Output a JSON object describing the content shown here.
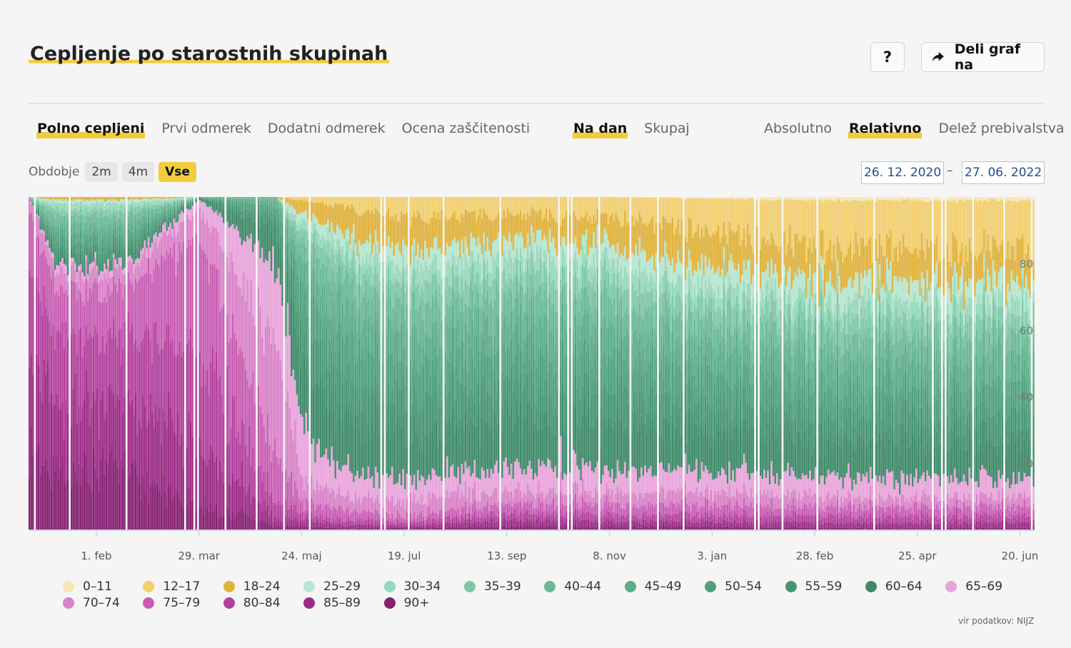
{
  "title": "Cepljenje po starostnih skupinah",
  "buttons": {
    "help": "?",
    "share": "Deli graf na"
  },
  "tabs": {
    "measure": [
      "Polno cepljeni",
      "Prvi odmerek",
      "Dodatni odmerek",
      "Ocena zaščitenosti"
    ],
    "measure_active": 0,
    "frequency": [
      "Na dan",
      "Skupaj"
    ],
    "frequency_active": 0,
    "scale": [
      "Absolutno",
      "Relativno",
      "Delež prebivalstva"
    ],
    "scale_active": 1
  },
  "period": {
    "label": "Obdobje",
    "options": [
      "2m",
      "4m",
      "Vse"
    ],
    "active": 2
  },
  "date_range": {
    "from": "26. 12. 2020",
    "separator": "–",
    "to": "27. 06. 2022"
  },
  "source": "vir podatkov: NIJZ",
  "colors": {
    "accent": "#f2cb3f",
    "groups": [
      "#f8e6b5",
      "#f2cf6e",
      "#e0b23c",
      "#b5e6d0",
      "#96d8bc",
      "#7dc7a7",
      "#69b895",
      "#5bac89",
      "#4fa07d",
      "#459573",
      "#3d8a69",
      "#e8a4da",
      "#d982c8",
      "#c85cb3",
      "#b3409e",
      "#9c2a86",
      "#861f72"
    ]
  },
  "chart_data": {
    "type": "stacked-bar",
    "x_range": [
      "2020-12-26",
      "2022-06-27"
    ],
    "x_ticks": [
      "1. feb",
      "29. mar",
      "24. maj",
      "19. jul",
      "13. sep",
      "8. nov",
      "3. jan",
      "28. feb",
      "25. apr",
      "20. jun"
    ],
    "x_tick_dates": [
      "2021-02-01",
      "2021-03-29",
      "2021-05-24",
      "2021-07-19",
      "2021-09-13",
      "2021-11-08",
      "2022-01-03",
      "2022-02-28",
      "2022-04-25",
      "2022-06-20"
    ],
    "y_ticks": [
      20,
      40,
      60,
      80
    ],
    "ylim": [
      0,
      100
    ],
    "unit": "%",
    "series": [
      "0–11",
      "12–17",
      "18–24",
      "25–29",
      "30–34",
      "35–39",
      "40–44",
      "45–49",
      "50–54",
      "55–59",
      "60–64",
      "65–69",
      "70–74",
      "75–79",
      "80–84",
      "85–89",
      "90+"
    ],
    "share_profile_percent": {
      "dates": [
        "2020-12-26",
        "2021-01-10",
        "2021-02-15",
        "2021-03-29",
        "2021-05-10",
        "2021-05-24",
        "2021-06-15",
        "2021-07-19",
        "2021-09-13",
        "2021-11-08",
        "2022-01-03",
        "2022-02-28",
        "2022-04-25",
        "2022-06-27"
      ],
      "groups": [
        {
          "group": "0–11",
          "values": [
            0,
            0,
            0,
            0,
            0,
            0,
            0,
            0,
            0,
            0,
            0.5,
            1,
            1,
            1
          ]
        },
        {
          "group": "12–17",
          "values": [
            0,
            0,
            0,
            0,
            0,
            1,
            3,
            6,
            5,
            6,
            10,
            14,
            14,
            15
          ]
        },
        {
          "group": "18–24",
          "values": [
            0,
            1,
            1,
            0,
            0,
            4,
            8,
            10,
            8,
            8,
            10,
            10,
            10,
            10
          ]
        },
        {
          "group": "25–29",
          "values": [
            0,
            1,
            1,
            0,
            0,
            3,
            4,
            5,
            5,
            5,
            6,
            6,
            6,
            6
          ]
        },
        {
          "group": "30–34",
          "values": [
            0,
            2,
            2,
            0,
            0,
            3,
            4,
            5,
            5,
            5,
            5,
            5,
            5,
            5
          ]
        },
        {
          "group": "35–39",
          "values": [
            0,
            2,
            2,
            0,
            0,
            4,
            5,
            6,
            6,
            6,
            6,
            6,
            6,
            6
          ]
        },
        {
          "group": "40–44",
          "values": [
            0,
            3,
            3,
            0,
            1,
            6,
            8,
            8,
            8,
            8,
            7,
            7,
            7,
            7
          ]
        },
        {
          "group": "45–49",
          "values": [
            0,
            3,
            3,
            0,
            2,
            8,
            10,
            9,
            9,
            9,
            8,
            8,
            8,
            8
          ]
        },
        {
          "group": "50–54",
          "values": [
            0,
            3,
            3,
            0,
            3,
            10,
            12,
            10,
            10,
            10,
            9,
            8,
            8,
            8
          ]
        },
        {
          "group": "55–59",
          "values": [
            0,
            3,
            3,
            0,
            4,
            12,
            12,
            10,
            10,
            10,
            8,
            8,
            8,
            8
          ]
        },
        {
          "group": "60–64",
          "values": [
            0,
            3,
            3,
            1,
            10,
            20,
            16,
            13,
            14,
            14,
            12,
            11,
            11,
            11
          ]
        },
        {
          "group": "65–69",
          "values": [
            0,
            2,
            2,
            3,
            25,
            14,
            8,
            6,
            7,
            7,
            6,
            6,
            6,
            5
          ]
        },
        {
          "group": "70–74",
          "values": [
            5,
            5,
            5,
            10,
            35,
            7,
            4,
            4,
            4,
            4,
            4,
            3,
            3,
            3
          ]
        },
        {
          "group": "75–79",
          "values": [
            15,
            12,
            12,
            30,
            12,
            3,
            3,
            2,
            3,
            3,
            3,
            3,
            3,
            3
          ]
        },
        {
          "group": "80–84",
          "values": [
            25,
            20,
            20,
            30,
            5,
            2,
            1.5,
            1,
            2,
            2,
            2,
            2,
            2,
            2
          ]
        },
        {
          "group": "85–89",
          "values": [
            30,
            22,
            22,
            18,
            2,
            2,
            1,
            0.5,
            2,
            1.5,
            1.5,
            1.5,
            1.5,
            1.5
          ]
        },
        {
          "group": "90+",
          "values": [
            25,
            18,
            18,
            8,
            1,
            1,
            0.5,
            0.5,
            1,
            1,
            1,
            0.5,
            0.5,
            0.5
          ]
        }
      ]
    }
  }
}
